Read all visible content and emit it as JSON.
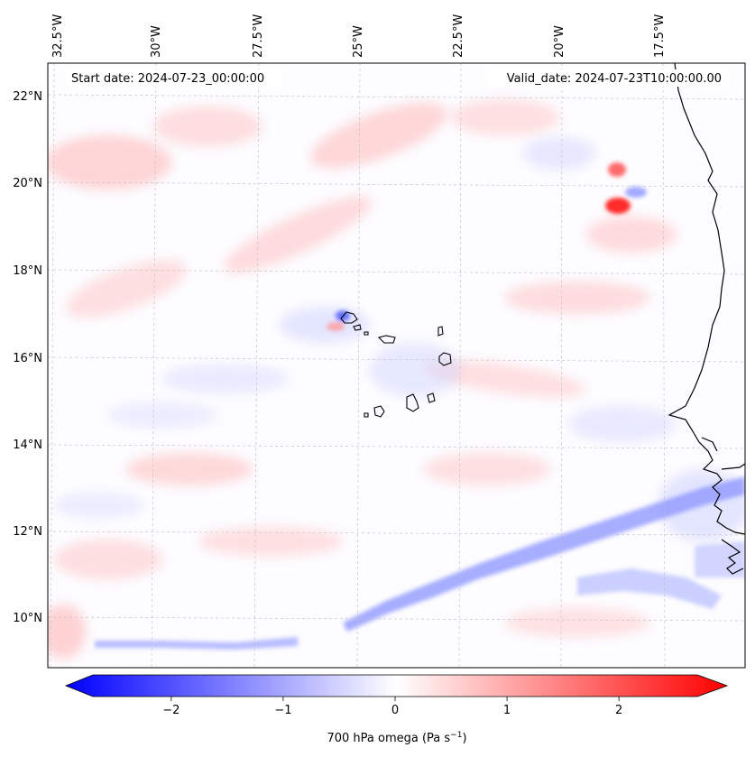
{
  "map": {
    "start_date": "Start date: 2024-07-23_00:00:00",
    "valid_date": "Valid_date: 2024-07-23T10:00:00.00",
    "lon_labels": [
      "32.5°W",
      "30°W",
      "27.5°W",
      "25°W",
      "22.5°W",
      "20°W",
      "17.5°W"
    ],
    "lat_labels": [
      "22°N",
      "20°N",
      "18°N",
      "16°N",
      "14°N",
      "12°N",
      "10°N"
    ],
    "colorbar": {
      "label": "700 hPa omega (Pa s",
      "label_sup": "−1",
      "label_end": ")",
      "ticks": [
        "−2",
        "−1",
        "0",
        "1",
        "2"
      ],
      "range": [
        -2.7,
        2.7
      ],
      "tick_values": [
        -2,
        -1,
        0,
        1,
        2
      ],
      "colormap": "bwr",
      "color_low": "#0000ff",
      "color_mid": "#ffffff",
      "color_high": "#ff0000"
    },
    "field": {
      "name": "700 hPa omega",
      "colors": {
        "ascent": "#3c4cff",
        "descent": "#ff2a2a",
        "coast": "#000000",
        "grid": "#bdbdbd"
      }
    }
  }
}
